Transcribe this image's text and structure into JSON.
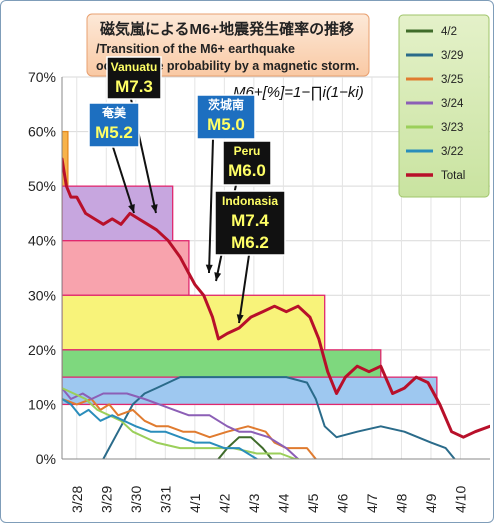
{
  "chart_data": {
    "type": "line",
    "title_ja": "磁気嵐によるM6+地震発生確率の推移",
    "title_en_1": "/Transition of the M6+ earthquake",
    "title_en_2": "occurrence probability by a magnetic storm.",
    "formula": "M6+[%]=1−∏i(1−ki)",
    "ylim": [
      0,
      70
    ],
    "y_ticks": [
      "0%",
      "10%",
      "20%",
      "30%",
      "40%",
      "50%",
      "60%",
      "70%"
    ],
    "x_start": 0,
    "x_end": 14.5,
    "x_ticks": [
      {
        "label": "3/28",
        "x": 0.5
      },
      {
        "label": "3/29",
        "x": 1.5
      },
      {
        "label": "3/30",
        "x": 2.5
      },
      {
        "label": "3/31",
        "x": 3.5
      },
      {
        "label": "4/1",
        "x": 4.5
      },
      {
        "label": "4/2",
        "x": 5.5
      },
      {
        "label": "4/3",
        "x": 6.5
      },
      {
        "label": "4/4",
        "x": 7.5
      },
      {
        "label": "4/5",
        "x": 8.5
      },
      {
        "label": "4/6",
        "x": 9.5
      },
      {
        "label": "4/7",
        "x": 10.5
      },
      {
        "label": "4/8",
        "x": 11.5
      },
      {
        "label": "4/9",
        "x": 12.5
      },
      {
        "label": "4/10",
        "x": 13.5
      }
    ],
    "bands": [
      {
        "x0": 0,
        "x1": 0.2,
        "y0": 50,
        "y1": 60,
        "fill": "#f7b24a",
        "stroke": "#e58a1f"
      },
      {
        "x0": 0,
        "x1": 3.75,
        "y0": 40,
        "y1": 50,
        "fill": "#c7a6df",
        "stroke": "#e0286e"
      },
      {
        "x0": 0,
        "x1": 4.3,
        "y0": 30,
        "y1": 40,
        "fill": "#f8a3ad",
        "stroke": "#e0286e"
      },
      {
        "x0": 0,
        "x1": 8.9,
        "y0": 20,
        "y1": 30,
        "fill": "#f8f37a",
        "stroke": "#e0286e"
      },
      {
        "x0": 0,
        "x1": 10.8,
        "y0": 15,
        "y1": 20,
        "fill": "#7ed87e",
        "stroke": "#e0286e"
      },
      {
        "x0": 0,
        "x1": 12.7,
        "y0": 10,
        "y1": 15,
        "fill": "#9ec8f0",
        "stroke": "#e0286e"
      }
    ],
    "series": [
      {
        "name": "4/2",
        "color": "#3f6b2a",
        "x": [
          5.3,
          5.6,
          6.0,
          6.4,
          6.8,
          7.1
        ],
        "y": [
          0,
          2,
          4,
          4,
          2,
          0
        ]
      },
      {
        "name": "3/29",
        "color": "#2a6b8a",
        "x": [
          1.4,
          1.8,
          2.0,
          2.4,
          2.8,
          3.2,
          3.6,
          4.0,
          4.6,
          5.0,
          5.5,
          6.2,
          7.0,
          7.6,
          8.3,
          8.6,
          8.9,
          9.3,
          10.0,
          10.8,
          11.6,
          12.5,
          13.0,
          13.3
        ],
        "y": [
          0,
          4,
          6,
          10,
          12,
          13,
          14,
          15,
          15,
          15,
          15,
          15,
          15,
          15,
          14,
          11,
          6,
          4,
          5,
          6,
          5,
          3,
          2,
          0
        ]
      },
      {
        "name": "3/25",
        "color": "#e07b2f",
        "x": [
          0,
          0.5,
          1.0,
          1.3,
          1.6,
          1.9,
          2.4,
          2.8,
          3.2,
          3.6,
          4.1,
          4.5,
          5.0,
          5.6,
          6.3,
          6.9,
          7.2,
          7.6,
          8.3,
          8.6
        ],
        "y": [
          11,
          10,
          11,
          9,
          10,
          8,
          9,
          7,
          6,
          6,
          5,
          5,
          4,
          5,
          6,
          5,
          3,
          2,
          2,
          0
        ]
      },
      {
        "name": "3/24",
        "color": "#8c5fb6",
        "x": [
          0,
          0.3,
          0.7,
          1.0,
          1.4,
          1.8,
          2.2,
          2.8,
          3.3,
          3.8,
          4.3,
          5.0,
          5.6,
          6.0,
          6.4,
          7.0,
          7.6,
          8.0
        ],
        "y": [
          13,
          11,
          12,
          11,
          12,
          12,
          12,
          11,
          10,
          9,
          8,
          8,
          6,
          5,
          5,
          4,
          2,
          0
        ]
      },
      {
        "name": "3/23",
        "color": "#9bcf5a",
        "x": [
          0,
          0.4,
          0.8,
          1.2,
          1.6,
          2.0,
          2.4,
          3.2,
          4.0,
          4.6,
          5.2,
          5.8,
          6.6,
          7.4,
          7.9,
          8.0
        ],
        "y": [
          13,
          12,
          11,
          9,
          8,
          7,
          5,
          3,
          2,
          2,
          2,
          2,
          1,
          1,
          0,
          0
        ]
      },
      {
        "name": "3/22",
        "color": "#2a8dbb",
        "x": [
          0,
          0.3,
          0.6,
          0.9,
          1.3,
          1.7,
          2.1,
          2.5,
          3.0,
          3.5,
          4.0,
          4.5,
          5.0,
          5.5,
          6.0,
          6.6
        ],
        "y": [
          11,
          10,
          8,
          9,
          7,
          8,
          7,
          6,
          5,
          5,
          4,
          3,
          3,
          2,
          2,
          0
        ]
      },
      {
        "name": "Total",
        "color": "#b8102a",
        "width": 3,
        "x": [
          0,
          0.15,
          0.3,
          0.5,
          0.8,
          1.1,
          1.4,
          1.7,
          2.0,
          2.3,
          2.6,
          2.9,
          3.2,
          3.6,
          4.0,
          4.3,
          4.5,
          4.8,
          5.1,
          5.3,
          5.6,
          6.0,
          6.4,
          6.8,
          7.2,
          7.6,
          8.0,
          8.4,
          8.7,
          9.0,
          9.3,
          9.6,
          10.0,
          10.4,
          10.8,
          11.2,
          11.6,
          12.0,
          12.4,
          12.8,
          13.2,
          13.6,
          14.0,
          14.5
        ],
        "y": [
          55,
          50,
          48,
          48,
          45,
          44,
          43,
          44,
          43,
          45,
          44,
          43,
          42,
          40,
          37,
          34,
          32,
          30,
          26,
          22,
          23,
          24,
          26,
          27,
          28,
          27,
          28,
          26,
          22,
          16,
          12,
          15,
          17,
          16,
          17,
          12,
          13,
          15,
          14,
          10,
          5,
          4,
          5,
          6
        ]
      }
    ],
    "legend": {
      "position": "right"
    },
    "annotations": [
      {
        "place": "Vanuatu",
        "mag": "M7.3"
      },
      {
        "place": "奄美",
        "mag": "M5.2"
      },
      {
        "place": "茨城南",
        "mag": "M5.0"
      },
      {
        "place": "Peru",
        "mag": "M6.0"
      },
      {
        "place": "Indonasia",
        "mag": "M7.4"
      },
      {
        "place": "",
        "mag": "M6.2"
      }
    ]
  }
}
